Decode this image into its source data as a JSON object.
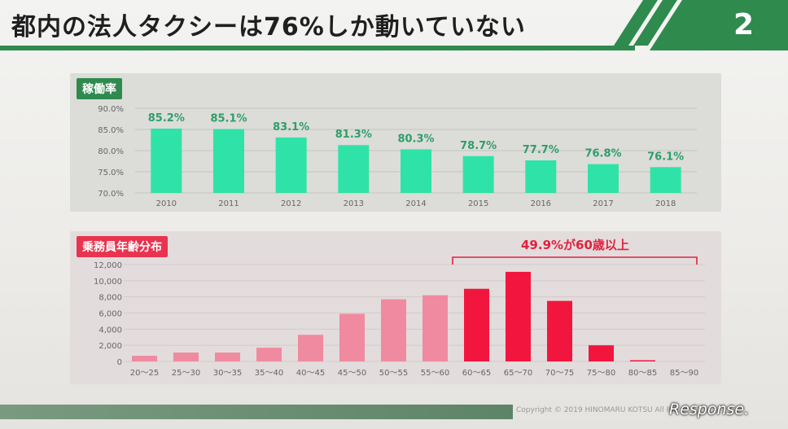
{
  "slide": {
    "title": "都内の法人タクシーは76%しか動いていない",
    "number": "2",
    "copyright": "Copyright © 2019 HINOMARU KOTSU All Rig",
    "watermark": "Response."
  },
  "colors": {
    "green_dark": "#2f8a4e",
    "bar_green": "#2fe3a8",
    "bar_pink": "#f08aa0",
    "bar_red": "#f2163f",
    "accent_red": "#e9334f"
  },
  "chart_data": [
    {
      "type": "bar",
      "title": "稼働率",
      "categories": [
        "2010",
        "2011",
        "2012",
        "2013",
        "2014",
        "2015",
        "2016",
        "2017",
        "2018"
      ],
      "values": [
        85.2,
        85.1,
        83.1,
        81.3,
        80.3,
        78.7,
        77.7,
        76.8,
        76.1
      ],
      "data_labels": [
        "85.2%",
        "85.1%",
        "83.1%",
        "81.3%",
        "80.3%",
        "78.7%",
        "77.7%",
        "76.8%",
        "76.1%"
      ],
      "ylim": [
        70,
        90
      ],
      "yticks": [
        "70.0%",
        "75.0%",
        "80.0%",
        "85.0%",
        "90.0%"
      ],
      "ytick_values": [
        70,
        75,
        80,
        85,
        90
      ],
      "grid": true
    },
    {
      "type": "bar",
      "title": "乗務員年齢分布",
      "categories": [
        "20～25",
        "25～30",
        "30～35",
        "35～40",
        "40～45",
        "45～50",
        "50～55",
        "55～60",
        "60～65",
        "65～70",
        "70～75",
        "75～80",
        "80～85",
        "85～90"
      ],
      "values": [
        700,
        1100,
        1100,
        1700,
        3300,
        5900,
        7700,
        8200,
        9000,
        11100,
        7500,
        2000,
        150,
        0
      ],
      "ylim": [
        0,
        12000
      ],
      "yticks": [
        "0",
        "2,000",
        "4,000",
        "6,000",
        "8,000",
        "10,000",
        "12,000"
      ],
      "ytick_values": [
        0,
        2000,
        4000,
        6000,
        8000,
        10000,
        12000
      ],
      "highlight_from_index": 8,
      "annotation": "49.9%が60歳以上",
      "grid": true
    }
  ]
}
